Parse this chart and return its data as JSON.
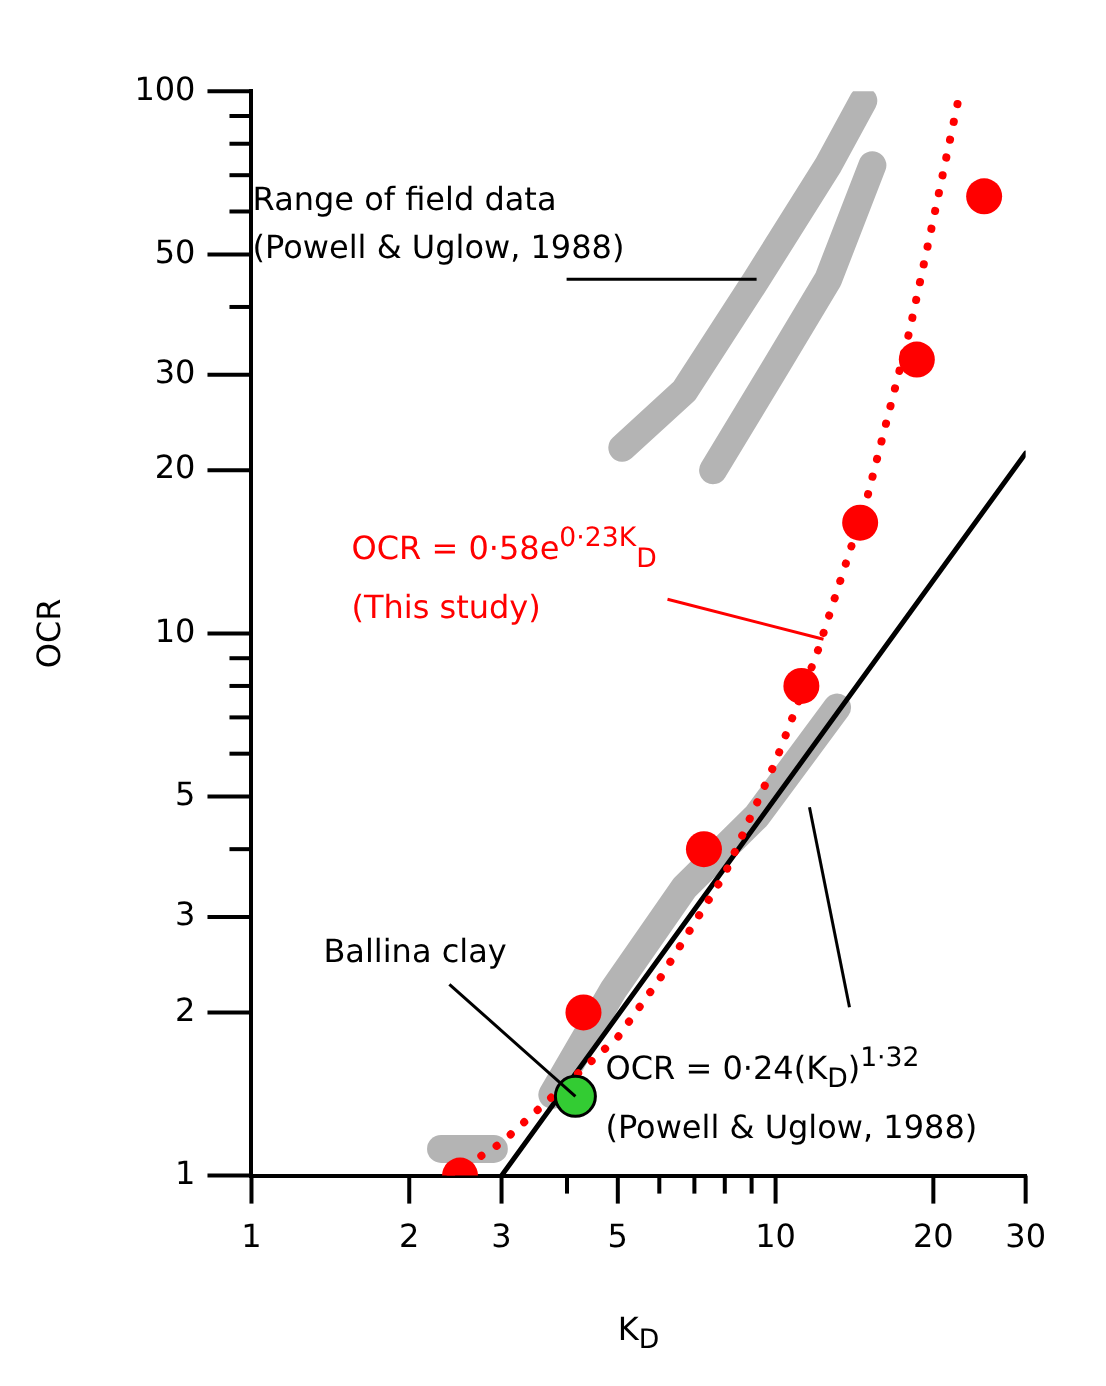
{
  "chart_data": {
    "type": "line",
    "xlabel": "K$_{D}$",
    "ylabel": "OCR",
    "log": "xy",
    "xlim": [
      1,
      30
    ],
    "ylim": [
      1,
      100
    ],
    "xticks": [
      1,
      2,
      3,
      {
        "value": 4,
        "label": null
      },
      5,
      {
        "value": 6,
        "label": null
      },
      {
        "value": 7,
        "label": null
      },
      {
        "value": 8,
        "label": null
      },
      {
        "value": 9,
        "label": null
      },
      10,
      20,
      30
    ],
    "yticks": [
      1,
      2,
      3,
      {
        "value": 4,
        "label": null
      },
      5,
      {
        "value": 6,
        "label": null
      },
      {
        "value": 7,
        "label": null
      },
      {
        "value": 8,
        "label": null
      },
      {
        "value": 9,
        "label": null
      },
      10,
      20,
      30,
      {
        "value": 40,
        "label": null
      },
      50,
      {
        "value": 60,
        "label": null
      },
      {
        "value": 70,
        "label": null
      },
      {
        "value": 80,
        "label": null
      },
      {
        "value": 90,
        "label": null
      },
      100
    ],
    "series": [
      {
        "color": "#b4b4b4",
        "marker": "none",
        "line_style": "solid",
        "x": [
          2.3,
          2.9
        ],
        "values": [
          1.12,
          1.12
        ]
      },
      {
        "color": "#b4b4b4",
        "marker": "none",
        "line_style": "solid",
        "x": [
          3.75,
          4.9,
          6.7,
          9.2,
          13.1
        ],
        "values": [
          1.41,
          2.2,
          3.4,
          4.6,
          7.3
        ]
      },
      {
        "color": "#b4b4b4",
        "marker": "none",
        "line_style": "solid",
        "x": [
          5.1,
          6.7,
          9.2,
          12.6,
          14.7
        ],
        "values": [
          22,
          28,
          45,
          73,
          96
        ]
      },
      {
        "color": "#b4b4b4",
        "marker": "none",
        "line_style": "solid",
        "x": [
          7.6,
          10,
          12.6,
          15.3
        ],
        "values": [
          20,
          31,
          45,
          73
        ]
      },
      {
        "color": "#000000",
        "marker": "none",
        "line_style": "solid",
        "x": [
          3,
          30
        ],
        "values": [
          1,
          21.5
        ]
      },
      {
        "color": "#ff0000",
        "marker": "none",
        "line_style": "dotted",
        "x": [
          2.4,
          3,
          5,
          6,
          8,
          10,
          12,
          15,
          18,
          20,
          22.5
        ],
        "values": [
          1.0,
          1.15,
          1.8,
          2.3,
          3.6,
          5.8,
          9.2,
          18,
          36,
          58,
          100
        ]
      },
      {
        "type": "scatter",
        "color": "#ff0000",
        "marker": "circle",
        "x": [
          2.5,
          4.3,
          7.3,
          11.2,
          14.5,
          18.6,
          25
        ],
        "values": [
          1,
          2,
          4,
          8,
          16,
          32,
          64
        ]
      },
      {
        "type": "scatter",
        "color": "#33cc33",
        "marker": "circle",
        "x": [
          4.15
        ],
        "values": [
          1.4
        ]
      }
    ],
    "annotations": [
      {
        "text": "Range of field data\n(Powell & Uglow, 1988)",
        "x": 9.2,
        "y": 45
      },
      "OCR = 0·58e$^{0·23K}$$_{D}$\n(This study)",
      {
        "text": "Ballina clay",
        "x": 4.15,
        "y": 1.4
      },
      "OCR = 0·24(K$_{D}$)$^{1·32}$\n(Powell & Uglow, 1988)"
    ]
  }
}
